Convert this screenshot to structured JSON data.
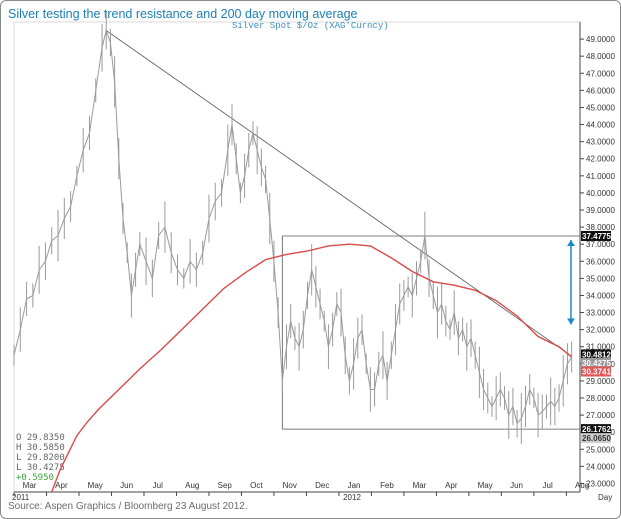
{
  "title": "Silver testing the trend resistance and 200 day moving average",
  "footer": "Source: Aspen Graphics / Bloomberg 23 August 2012.",
  "chart_data": {
    "type": "line",
    "legend": "Silver  Spot    $/Oz  (XAG'Curncy)",
    "ylim": [
      22.5,
      50
    ],
    "y_ticks": [
      "23.0000",
      "24.0000",
      "25.0000",
      "26.0000",
      "27.0000",
      "28.0000",
      "29.0000",
      "30.0000",
      "31.0000",
      "32.0000",
      "33.0000",
      "34.0000",
      "35.0000",
      "36.0000",
      "37.0000",
      "38.0000",
      "39.0000",
      "40.0000",
      "41.0000",
      "42.0000",
      "43.0000",
      "44.0000",
      "45.0000",
      "46.0000",
      "47.0000",
      "48.0000",
      "49.0000"
    ],
    "x_months": [
      "Mar",
      "Apr",
      "May",
      "Jun",
      "Jul",
      "Aug",
      "Sep",
      "Oct",
      "Nov",
      "Dec",
      "Jan",
      "Feb",
      "Mar",
      "Apr",
      "May",
      "Jun",
      "Jul",
      "Aug"
    ],
    "x_years": [
      "2011",
      "2012"
    ],
    "x_end_label": "Day",
    "ohlc": {
      "open": "O 29.8350",
      "high": "H 30.5850",
      "low": "L 29.8200",
      "last": "L 30.4275",
      "change": "+0.5950"
    },
    "price_tags": [
      {
        "value": "37.4775",
        "y": 37.48,
        "color": "#111111",
        "text_color": "#ffffff"
      },
      {
        "value": "30.4812",
        "y": 30.55,
        "color": "#111111",
        "text_color": "#ffffff"
      },
      {
        "value": "30.4275",
        "y": 30.05,
        "color": "#9a9a9a",
        "text_color": "#ffffff"
      },
      {
        "value": "30.3741",
        "y": 29.55,
        "color": "#e15656",
        "text_color": "#ffffff"
      },
      {
        "value": "26.1762",
        "y": 26.18,
        "color": "#111111",
        "text_color": "#ffffff"
      },
      {
        "value": "26.0650",
        "y": 25.65,
        "color": "#cfcfcf",
        "text_color": "#333333"
      }
    ],
    "series": [
      {
        "name": "",
        "style": "price",
        "color": "#9a9a9a",
        "points": [
          [
            0,
            30.5
          ],
          [
            3,
            32.0
          ],
          [
            6,
            33.8
          ],
          [
            9,
            34.0
          ],
          [
            12,
            35.5
          ],
          [
            15,
            36.0
          ],
          [
            18,
            37.2
          ],
          [
            21,
            37.5
          ],
          [
            24,
            38.5
          ],
          [
            27,
            39.2
          ],
          [
            30,
            41.0
          ],
          [
            33,
            42.5
          ],
          [
            36,
            43.5
          ],
          [
            39,
            46.0
          ],
          [
            42,
            48.5
          ],
          [
            44,
            49.5
          ],
          [
            46,
            48.8
          ],
          [
            48,
            46.5
          ],
          [
            50,
            42.0
          ],
          [
            52,
            38.5
          ],
          [
            54,
            36.5
          ],
          [
            56,
            34.0
          ],
          [
            58,
            35.5
          ],
          [
            60,
            37.0
          ],
          [
            63,
            36.0
          ],
          [
            66,
            35.0
          ],
          [
            69,
            37.5
          ],
          [
            72,
            38.0
          ],
          [
            75,
            36.5
          ],
          [
            78,
            35.5
          ],
          [
            81,
            35.0
          ],
          [
            84,
            36.0
          ],
          [
            87,
            35.5
          ],
          [
            90,
            36.5
          ],
          [
            93,
            38.5
          ],
          [
            96,
            39.5
          ],
          [
            99,
            40.0
          ],
          [
            102,
            42.5
          ],
          [
            104,
            44.0
          ],
          [
            106,
            42.0
          ],
          [
            108,
            40.0
          ],
          [
            110,
            41.0
          ],
          [
            112,
            42.5
          ],
          [
            114,
            43.5
          ],
          [
            116,
            42.5
          ],
          [
            118,
            41.5
          ],
          [
            120,
            40.8
          ],
          [
            122,
            38.5
          ],
          [
            124,
            36.0
          ],
          [
            126,
            33.0
          ],
          [
            128,
            29.0
          ],
          [
            130,
            31.0
          ],
          [
            132,
            32.5
          ],
          [
            134,
            31.5
          ],
          [
            136,
            31.0
          ],
          [
            138,
            32.0
          ],
          [
            140,
            34.0
          ],
          [
            142,
            35.5
          ],
          [
            144,
            34.5
          ],
          [
            146,
            33.5
          ],
          [
            148,
            32.5
          ],
          [
            150,
            31.0
          ],
          [
            152,
            32.0
          ],
          [
            154,
            33.5
          ],
          [
            156,
            33.0
          ],
          [
            158,
            30.5
          ],
          [
            160,
            29.0
          ],
          [
            162,
            30.0
          ],
          [
            164,
            31.5
          ],
          [
            166,
            32.0
          ],
          [
            168,
            30.0
          ],
          [
            170,
            28.5
          ],
          [
            172,
            28.5
          ],
          [
            174,
            30.0
          ],
          [
            176,
            30.5
          ],
          [
            178,
            29.0
          ],
          [
            180,
            30.5
          ],
          [
            182,
            32.0
          ],
          [
            184,
            33.5
          ],
          [
            186,
            34.0
          ],
          [
            188,
            34.5
          ],
          [
            190,
            34.0
          ],
          [
            192,
            35.0
          ],
          [
            194,
            36.0
          ],
          [
            196,
            37.5
          ],
          [
            198,
            35.0
          ],
          [
            200,
            34.0
          ],
          [
            202,
            33.0
          ],
          [
            204,
            33.5
          ],
          [
            206,
            32.5
          ],
          [
            208,
            32.0
          ],
          [
            210,
            33.0
          ],
          [
            212,
            31.5
          ],
          [
            214,
            32.0
          ],
          [
            216,
            31.0
          ],
          [
            218,
            31.5
          ],
          [
            220,
            30.5
          ],
          [
            222,
            29.5
          ],
          [
            224,
            28.5
          ],
          [
            226,
            28.0
          ],
          [
            228,
            27.5
          ],
          [
            230,
            28.0
          ],
          [
            232,
            28.5
          ],
          [
            234,
            28.0
          ],
          [
            236,
            27.0
          ],
          [
            238,
            27.5
          ],
          [
            240,
            26.5
          ],
          [
            242,
            26.8
          ],
          [
            244,
            27.5
          ],
          [
            246,
            28.5
          ],
          [
            248,
            28.0
          ],
          [
            250,
            27.0
          ],
          [
            252,
            27.2
          ],
          [
            254,
            27.5
          ],
          [
            256,
            27.8
          ],
          [
            258,
            27.5
          ],
          [
            260,
            28.0
          ],
          [
            262,
            29.0
          ],
          [
            264,
            30.0
          ],
          [
            266,
            30.4
          ]
        ]
      },
      {
        "name": "",
        "style": "ma200",
        "color": "#d94a4a",
        "points": [
          [
            18,
            22.5
          ],
          [
            22,
            23.8
          ],
          [
            26,
            24.8
          ],
          [
            30,
            25.8
          ],
          [
            35,
            26.6
          ],
          [
            40,
            27.3
          ],
          [
            45,
            27.9
          ],
          [
            50,
            28.5
          ],
          [
            55,
            29.1
          ],
          [
            60,
            29.7
          ],
          [
            70,
            30.8
          ],
          [
            80,
            32.0
          ],
          [
            90,
            33.2
          ],
          [
            100,
            34.4
          ],
          [
            110,
            35.3
          ],
          [
            120,
            36.1
          ],
          [
            130,
            36.4
          ],
          [
            140,
            36.6
          ],
          [
            150,
            36.9
          ],
          [
            160,
            37.0
          ],
          [
            170,
            36.9
          ],
          [
            180,
            36.2
          ],
          [
            190,
            35.4
          ],
          [
            200,
            34.8
          ],
          [
            210,
            34.6
          ],
          [
            220,
            34.3
          ],
          [
            230,
            33.7
          ],
          [
            240,
            32.8
          ],
          [
            250,
            31.6
          ],
          [
            260,
            31.0
          ],
          [
            266,
            30.4
          ]
        ]
      }
    ],
    "trendline": [
      [
        44,
        49.5
      ],
      [
        266,
        30.45
      ]
    ],
    "range_top": 37.48,
    "range_bottom": 26.18
  }
}
